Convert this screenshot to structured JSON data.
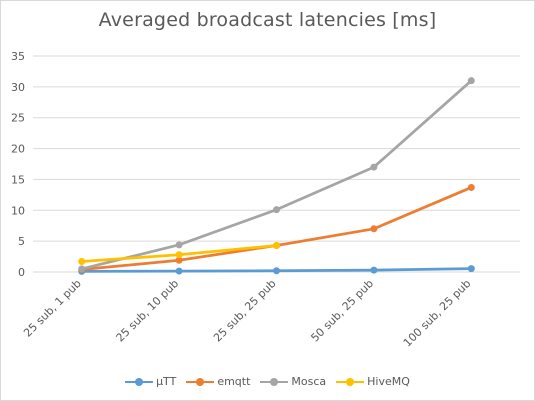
{
  "chart_data": {
    "type": "line",
    "title": "Averaged broadcast latencies [ms]",
    "categories": [
      "25 sub, 1 pub",
      "25 sub, 10 pub",
      "25 sub, 25 pub",
      "50 sub, 25 pub",
      "100 sub, 25 pub"
    ],
    "ylim": [
      0,
      35
    ],
    "yticks": [
      0,
      5,
      10,
      15,
      20,
      25,
      30,
      35
    ],
    "grid": true,
    "legend_position": "bottom",
    "series": [
      {
        "name": "µTT",
        "color": "#5b9bd5",
        "values": [
          0.1,
          0.15,
          0.2,
          0.3,
          0.55
        ]
      },
      {
        "name": "emqtt",
        "color": "#ed7d31",
        "values": [
          0.4,
          1.9,
          4.3,
          7.0,
          13.7
        ]
      },
      {
        "name": "Mosca",
        "color": "#a5a5a5",
        "values": [
          0.5,
          4.4,
          10.1,
          17.0,
          31.0
        ]
      },
      {
        "name": "HiveMQ",
        "color": "#ffc000",
        "values": [
          1.7,
          2.8,
          4.3,
          null,
          null
        ]
      }
    ]
  }
}
